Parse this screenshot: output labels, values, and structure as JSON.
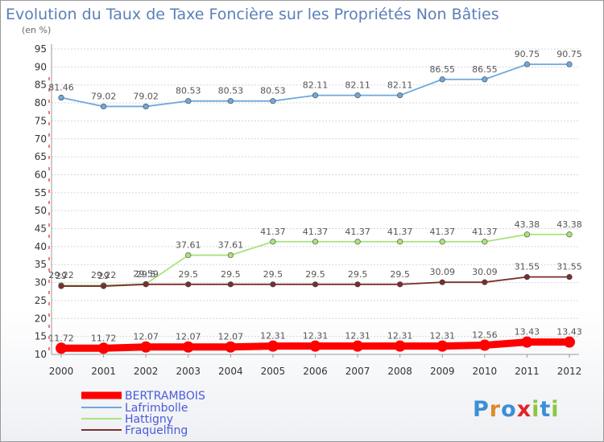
{
  "chart_data": {
    "type": "line",
    "title": "Evolution du Taux de Taxe Foncière sur les Propriétés Non Bâties",
    "subtitle": "(en %)",
    "categories": [
      "2000",
      "2001",
      "2002",
      "2003",
      "2004",
      "2005",
      "2006",
      "2007",
      "2008",
      "2009",
      "2010",
      "2011",
      "2012"
    ],
    "ylim": [
      10,
      95
    ],
    "yticks": [
      10,
      15,
      20,
      25,
      30,
      35,
      40,
      45,
      50,
      55,
      60,
      65,
      70,
      75,
      80,
      85,
      90,
      95
    ],
    "grid": "horizontal",
    "legend_position": "bottom-left",
    "series": [
      {
        "name": "BERTRAMBOIS",
        "color": "#ff0000",
        "values": [
          11.72,
          11.72,
          12.07,
          12.07,
          12.07,
          12.31,
          12.31,
          12.31,
          12.31,
          12.31,
          12.56,
          13.43,
          13.43
        ],
        "labels": [
          "11.72",
          "11.72",
          "12.07",
          "12.07",
          "12.07",
          "12.31",
          "12.31",
          "12.31",
          "12.31",
          "12.31",
          "12.56",
          "13.43",
          "13.43"
        ]
      },
      {
        "name": "Lafrimbolle",
        "color": "#6fa8dc",
        "values": [
          81.46,
          79.02,
          79.02,
          80.53,
          80.53,
          80.53,
          82.11,
          82.11,
          82.11,
          86.55,
          86.55,
          90.75,
          90.75
        ],
        "labels": [
          "81.46",
          "79.02",
          "79.02",
          "80.53",
          "80.53",
          "80.53",
          "82.11",
          "82.11",
          "82.11",
          "86.55",
          "86.55",
          "90.75",
          "90.75"
        ]
      },
      {
        "name": "Hattigny",
        "color": "#a9e37b",
        "values": [
          29.22,
          29.22,
          29.59,
          37.61,
          37.61,
          41.37,
          41.37,
          41.37,
          41.37,
          41.37,
          41.37,
          43.38,
          43.38
        ],
        "labels": [
          "29.22",
          "29.22",
          "29.59",
          "37.61",
          "37.61",
          "41.37",
          "41.37",
          "41.37",
          "41.37",
          "41.37",
          "41.37",
          "43.38",
          "43.38"
        ]
      },
      {
        "name": "Fraquelfing",
        "color": "#7b2e2e",
        "values": [
          29,
          29,
          29.5,
          29.5,
          29.5,
          29.5,
          29.5,
          29.5,
          29.5,
          30.09,
          30.09,
          31.55,
          31.55
        ],
        "labels": [
          "29",
          "29",
          "29.5",
          "29.5",
          "29.5",
          "29.5",
          "29.5",
          "29.5",
          "29.5",
          "30.09",
          "30.09",
          "31.55",
          "31.55"
        ]
      }
    ]
  },
  "logo": {
    "text": "Proxiti"
  }
}
